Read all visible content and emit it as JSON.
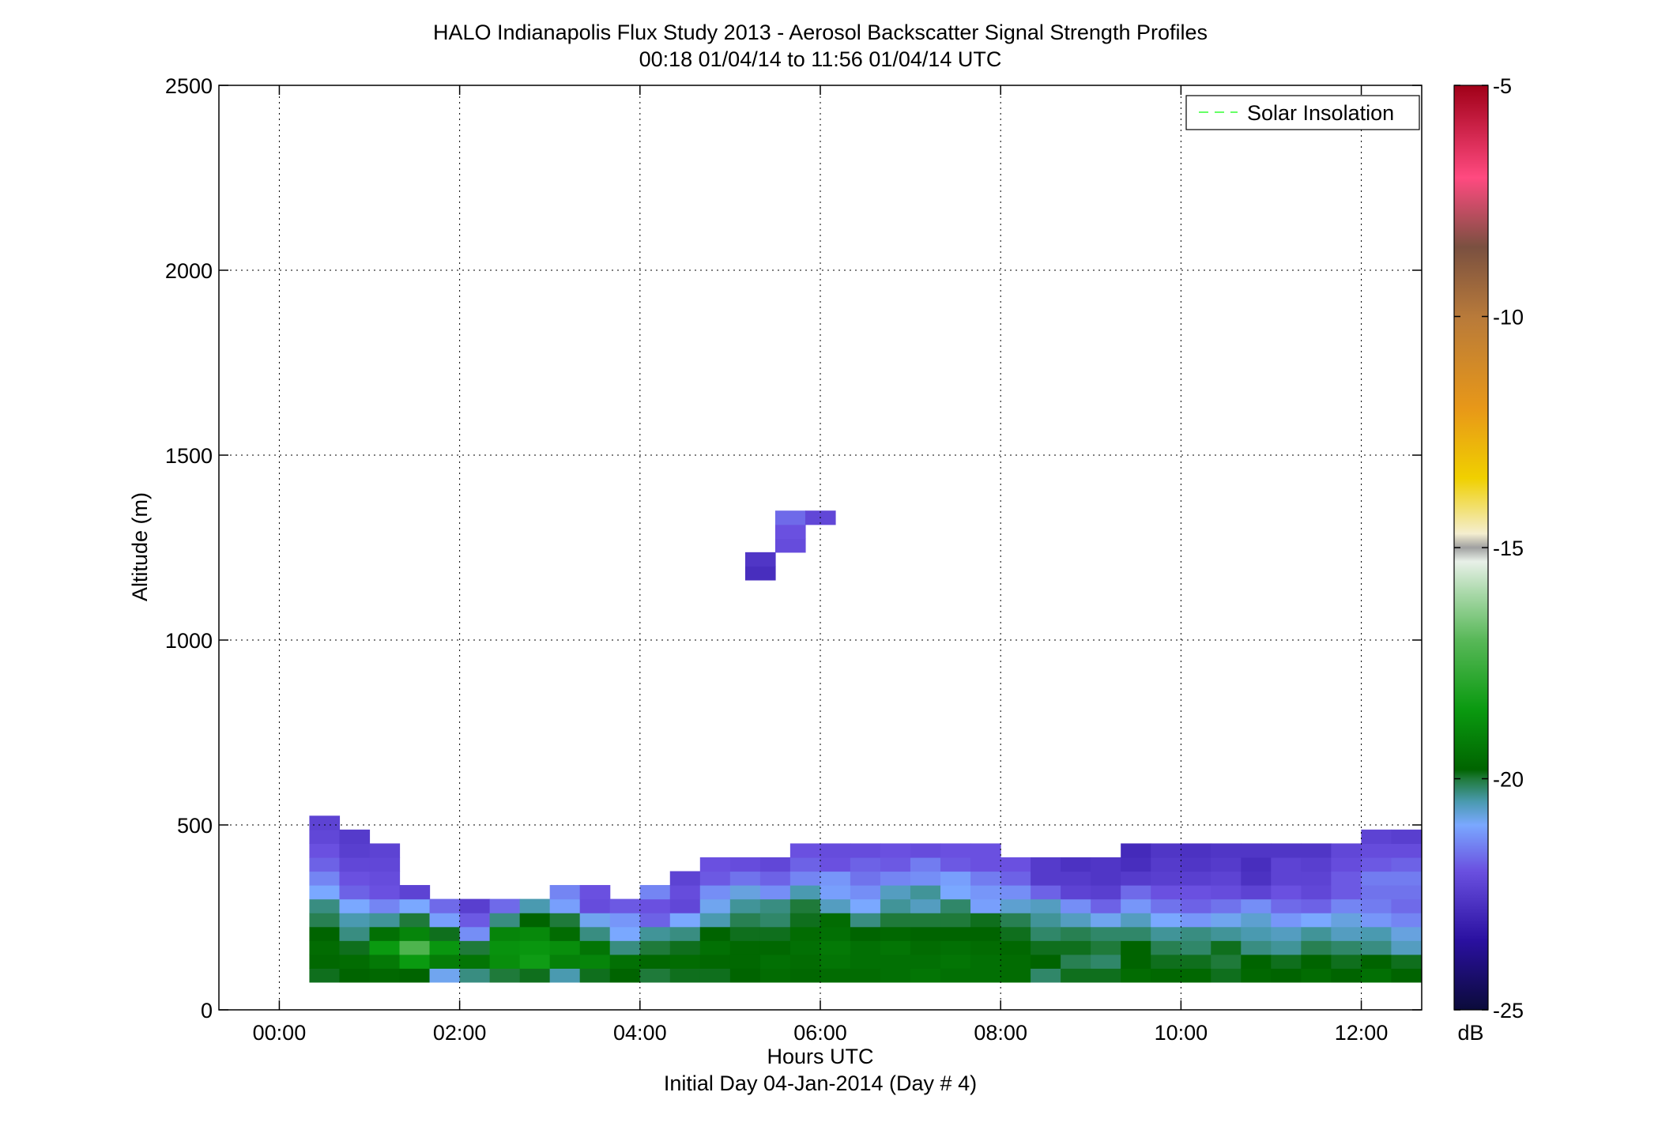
{
  "chart_data": {
    "type": "heatmap",
    "title": "HALO Indianapolis Flux Study 2013 - Aerosol Backscatter Signal Strength Profiles",
    "subtitle": "00:18 01/04/14 to 11:56 01/04/14  UTC",
    "xlabel": "Hours UTC",
    "xlabel2": "Initial Day 04-Jan-2014 (Day # 4)",
    "ylabel": "Altitude (m)",
    "xlim": [
      -0.67,
      12.67
    ],
    "ylim": [
      0,
      2500
    ],
    "x_ticks": [
      {
        "value": 0,
        "label": "00:00"
      },
      {
        "value": 2,
        "label": "02:00"
      },
      {
        "value": 4,
        "label": "04:00"
      },
      {
        "value": 6,
        "label": "06:00"
      },
      {
        "value": 8,
        "label": "08:00"
      },
      {
        "value": 10,
        "label": "10:00"
      },
      {
        "value": 12,
        "label": "12:00"
      }
    ],
    "y_ticks": [
      {
        "value": 0,
        "label": "0"
      },
      {
        "value": 500,
        "label": "500"
      },
      {
        "value": 1000,
        "label": "1000"
      },
      {
        "value": 1500,
        "label": "1500"
      },
      {
        "value": 2000,
        "label": "2000"
      },
      {
        "value": 2500,
        "label": "2500"
      }
    ],
    "grid": true,
    "legend": {
      "position": "top-right",
      "entries": [
        {
          "label": "Solar Insolation",
          "color": "#66ff66",
          "style": "dashed"
        }
      ]
    },
    "colorbar": {
      "label": "dB",
      "range": [
        -25,
        -5
      ],
      "ticks": [
        {
          "value": -5,
          "label": "-5"
        },
        {
          "value": -10,
          "label": "-10"
        },
        {
          "value": -15,
          "label": "-15"
        },
        {
          "value": -20,
          "label": "-20"
        },
        {
          "value": -25,
          "label": "-25"
        }
      ],
      "stops": [
        {
          "value": -25,
          "color": "#0b0b3a"
        },
        {
          "value": -23.5,
          "color": "#2a10a0"
        },
        {
          "value": -22,
          "color": "#6a50e0"
        },
        {
          "value": -21,
          "color": "#7aa8ff"
        },
        {
          "value": -20.5,
          "color": "#4a9ab0"
        },
        {
          "value": -20,
          "color": "#1f7a3a"
        },
        {
          "value": -19.8,
          "color": "#006400"
        },
        {
          "value": -18.5,
          "color": "#0a9a10"
        },
        {
          "value": -17,
          "color": "#58b858"
        },
        {
          "value": -16,
          "color": "#a8d8a8"
        },
        {
          "value": -15.3,
          "color": "#e8f0e8"
        },
        {
          "value": -15.0,
          "color": "#a0a0a0"
        },
        {
          "value": -14.7,
          "color": "#f4eed0"
        },
        {
          "value": -13.5,
          "color": "#f0d000"
        },
        {
          "value": -12,
          "color": "#e89818"
        },
        {
          "value": -10,
          "color": "#b87a3a"
        },
        {
          "value": -8.5,
          "color": "#7a5040"
        },
        {
          "value": -7,
          "color": "#ff4a80"
        },
        {
          "value": -5,
          "color": "#a00018"
        }
      ]
    },
    "time_start": 0.333,
    "time_step": 0.3333,
    "z_start": 75,
    "z_step": 37.5,
    "values": [
      [
        -19.9,
        -19.7,
        -19.6,
        -19.8,
        -20.1,
        -20.3,
        -21.0,
        -21.4,
        -21.8,
        -22.0,
        -22.2,
        -22.3
      ],
      [
        -19.8,
        -19.6,
        -19.9,
        -20.3,
        -20.5,
        -21.0,
        -21.8,
        -22.0,
        -22.2,
        -22.4,
        -22.5,
        null
      ],
      [
        -19.7,
        -19.3,
        -18.5,
        -19.5,
        -20.4,
        -21.4,
        -22.0,
        -22.1,
        -22.2,
        -22.3,
        null,
        null
      ],
      [
        -19.8,
        -18.5,
        -17.2,
        -19.0,
        -20.0,
        -21.0,
        -22.3,
        null,
        null,
        null,
        null,
        null
      ],
      [
        -20.9,
        -19.2,
        -18.6,
        -19.9,
        -21.1,
        -21.7,
        null,
        null,
        null,
        null,
        null,
        null
      ],
      [
        -20.3,
        -19.4,
        -20.0,
        -21.3,
        -21.9,
        -22.4,
        null,
        null,
        null,
        null,
        null,
        null
      ],
      [
        -20.0,
        -18.8,
        -18.7,
        -19.0,
        -20.3,
        -21.7,
        null,
        null,
        null,
        null,
        null,
        null
      ],
      [
        -19.9,
        -18.4,
        -18.6,
        -18.9,
        -19.8,
        -20.5,
        null,
        null,
        null,
        null,
        null,
        null
      ],
      [
        -20.5,
        -19.1,
        -18.8,
        -19.6,
        -20.0,
        -21.1,
        -21.4,
        null,
        null,
        null,
        null,
        null
      ],
      [
        -19.9,
        -19.0,
        -19.4,
        -20.3,
        -20.9,
        -22.1,
        -22.0,
        null,
        null,
        null,
        null,
        null
      ],
      [
        -19.8,
        -19.5,
        -20.3,
        -21.0,
        -21.2,
        -21.9,
        null,
        null,
        null,
        null,
        null,
        null
      ],
      [
        -20.0,
        -19.7,
        -20.0,
        -20.4,
        -21.8,
        -22.0,
        -21.4,
        null,
        null,
        null,
        null,
        null
      ],
      [
        -19.9,
        -19.6,
        -19.9,
        -20.3,
        -21.0,
        -22.2,
        -22.1,
        -22.3,
        null,
        null,
        null,
        null
      ],
      [
        -19.9,
        -19.7,
        -19.5,
        -19.8,
        -20.5,
        -20.9,
        -21.3,
        -21.9,
        -22.0,
        null,
        null,
        null
      ],
      [
        -19.8,
        -19.7,
        -19.7,
        -19.9,
        -20.1,
        -20.4,
        -20.8,
        -21.6,
        -22.1,
        null,
        null,
        null
      ],
      [
        -19.6,
        -19.5,
        -19.7,
        -19.9,
        -20.2,
        -20.3,
        -21.3,
        -21.8,
        -22.2,
        null,
        null,
        null
      ],
      [
        -19.7,
        -19.6,
        -19.5,
        -19.6,
        -19.9,
        -20.0,
        -20.5,
        -21.4,
        -21.8,
        -22.0,
        null,
        null
      ],
      [
        -19.6,
        -19.4,
        -19.3,
        -19.5,
        -19.6,
        -20.6,
        -21.1,
        -21.2,
        -22.0,
        -22.1,
        null,
        null
      ],
      [
        -19.6,
        -19.5,
        -19.5,
        -19.8,
        -20.3,
        -21.0,
        -21.3,
        -21.6,
        -21.8,
        -22.1,
        null,
        null
      ],
      [
        -19.5,
        -19.5,
        -19.4,
        -19.7,
        -20.0,
        -20.4,
        -20.6,
        -21.4,
        -21.9,
        -22.0,
        null,
        null
      ],
      [
        -19.4,
        -19.5,
        -19.6,
        -19.8,
        -20.0,
        -20.6,
        -20.4,
        -21.3,
        -21.5,
        -22.1,
        null,
        null
      ],
      [
        -19.5,
        -19.4,
        -19.5,
        -19.8,
        -20.0,
        -20.2,
        -21.0,
        -21.1,
        -21.9,
        -22.0,
        null,
        null
      ],
      [
        -19.5,
        -19.5,
        -19.6,
        -19.8,
        -19.9,
        -21.1,
        -21.2,
        -21.5,
        -22.0,
        -22.0,
        null,
        null
      ],
      [
        -19.6,
        -19.6,
        -19.7,
        -19.9,
        -20.1,
        -20.7,
        -21.3,
        -21.8,
        -22.0,
        null,
        null,
        null
      ],
      [
        -20.2,
        -19.8,
        -19.9,
        -20.2,
        -20.4,
        -20.6,
        -21.8,
        -22.5,
        -22.5,
        null,
        null,
        null
      ],
      [
        -19.9,
        -20.1,
        -19.9,
        -20.1,
        -20.6,
        -21.3,
        -22.3,
        -22.5,
        -22.7,
        null,
        null,
        null
      ],
      [
        -19.9,
        -20.2,
        -20.0,
        -20.2,
        -20.9,
        -21.8,
        -22.4,
        -22.6,
        -22.6,
        null,
        null,
        null
      ],
      [
        -19.6,
        -19.8,
        -19.8,
        -20.2,
        -20.6,
        -21.2,
        -21.7,
        -22.5,
        -22.8,
        -22.9,
        null,
        null
      ],
      [
        -19.7,
        -19.9,
        -20.1,
        -20.4,
        -21.0,
        -21.6,
        -22.0,
        -22.4,
        -22.5,
        -22.6,
        null,
        null
      ],
      [
        -19.7,
        -19.9,
        -20.2,
        -20.3,
        -21.2,
        -21.8,
        -22.0,
        -22.4,
        -22.6,
        -22.7,
        null,
        null
      ],
      [
        -19.9,
        -20.0,
        -19.9,
        -20.4,
        -20.9,
        -21.6,
        -22.1,
        -22.3,
        -22.5,
        -22.6,
        null,
        null
      ],
      [
        -19.7,
        -19.8,
        -20.3,
        -20.5,
        -20.7,
        -21.3,
        -22.3,
        -22.7,
        -22.8,
        -22.6,
        null,
        null
      ],
      [
        -19.8,
        -19.9,
        -20.4,
        -20.6,
        -21.2,
        -21.7,
        -22.0,
        -22.3,
        -22.3,
        -22.6,
        null,
        null
      ],
      [
        -19.6,
        -19.8,
        -20.1,
        -20.4,
        -21.0,
        -21.8,
        -22.2,
        -22.3,
        -22.4,
        -22.6,
        null,
        null
      ],
      [
        -19.8,
        -19.9,
        -20.2,
        -20.6,
        -20.8,
        -21.4,
        -21.9,
        -21.9,
        -22.1,
        -22.2,
        null,
        null
      ],
      [
        -19.5,
        -19.8,
        -20.3,
        -20.5,
        -21.2,
        -21.5,
        -21.6,
        -21.5,
        -21.9,
        -22.1,
        -22.3,
        null
      ],
      [
        -19.8,
        -19.9,
        -20.6,
        -20.8,
        -21.4,
        -21.7,
        -21.6,
        -21.5,
        -21.8,
        -22.1,
        -22.4,
        null
      ]
    ],
    "aloft_cells": [
      {
        "time": 5.167,
        "altitude": 1162.5,
        "value": -22.8
      },
      {
        "time": 5.167,
        "altitude": 1200,
        "value": -22.6
      },
      {
        "time": 5.5,
        "altitude": 1237.5,
        "value": -22.1
      },
      {
        "time": 5.5,
        "altitude": 1275,
        "value": -22.0
      },
      {
        "time": 5.5,
        "altitude": 1312.5,
        "value": -21.7
      },
      {
        "time": 5.833,
        "altitude": 1312.5,
        "value": -22.2
      }
    ]
  }
}
